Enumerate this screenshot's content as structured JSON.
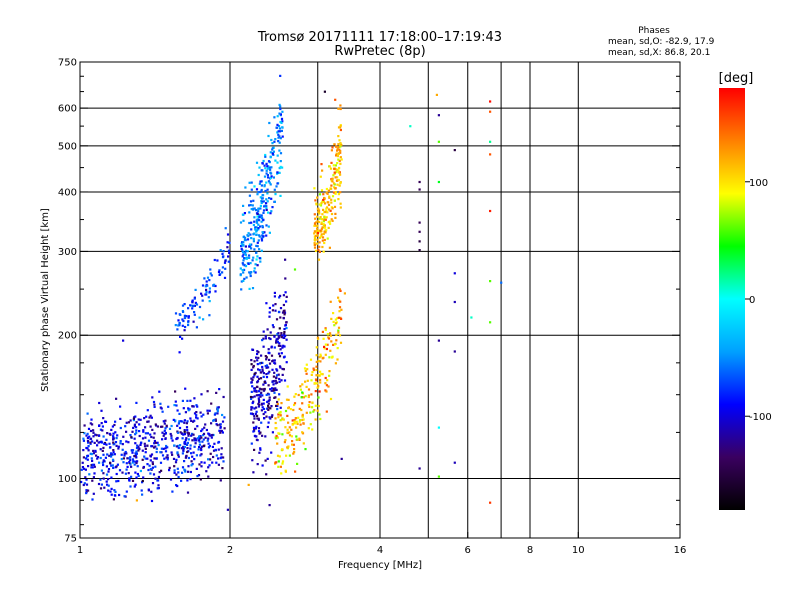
{
  "header": {
    "title_line1": "Tromsø 20171111 17:18:00–17:19:43",
    "title_line2": "RwPretec (8p)"
  },
  "stats": {
    "heading": "Phases",
    "line_o": "mean, sd,O: -82.9, 17.9",
    "line_x": "mean, sd,X:  86.8, 20.1"
  },
  "colorbar": {
    "unit_label": "[deg]",
    "range": [
      -180,
      180
    ],
    "ticks": [
      {
        "value": 100,
        "label": "100"
      },
      {
        "value": 0,
        "label": "0"
      },
      {
        "value": -100,
        "label": "-100"
      }
    ],
    "stops": [
      "#000000",
      "#3a0060",
      "#0000ff",
      "#00a0ff",
      "#00ffff",
      "#00ff00",
      "#ffff00",
      "#ff8000",
      "#ff0000"
    ]
  },
  "chart_data": {
    "type": "scatter",
    "title": "Tromsø 20171111 17:18:00–17:19:43",
    "subtitle": "RwPretec (8p)",
    "xlabel": "Frequency [MHz]",
    "ylabel": "Stationary phase Virtual Height [km]",
    "x_scale": "log",
    "y_scale": "log",
    "xlim": [
      1,
      16
    ],
    "ylim": [
      75,
      750
    ],
    "grid": true,
    "x_ticks": [
      {
        "value": 1,
        "label": "1"
      },
      {
        "value": 2,
        "label": "2"
      },
      {
        "value": 4,
        "label": "4"
      },
      {
        "value": 6,
        "label": "6"
      },
      {
        "value": 8,
        "label": "8"
      },
      {
        "value": 10,
        "label": "10"
      },
      {
        "value": 16,
        "label": "16"
      }
    ],
    "x_grid": [
      2,
      3,
      4,
      5,
      6,
      7,
      8,
      10
    ],
    "y_ticks": [
      {
        "value": 75,
        "label": "75"
      },
      {
        "value": 100,
        "label": "100"
      },
      {
        "value": 200,
        "label": "200"
      },
      {
        "value": 300,
        "label": "300"
      },
      {
        "value": 400,
        "label": "400"
      },
      {
        "value": 500,
        "label": "500"
      },
      {
        "value": 600,
        "label": "600"
      },
      {
        "value": 750,
        "label": "750"
      }
    ],
    "y_grid": [
      100,
      200,
      300,
      400,
      500,
      600
    ],
    "y_minor": [
      80,
      90,
      125,
      150,
      175,
      250,
      350,
      450,
      550,
      650,
      700
    ],
    "color_scale": "phase [deg], -180 to 180",
    "point_groups": [
      {
        "x_range": [
          1.0,
          1.95
        ],
        "height_start": 112,
        "height_end": 125,
        "count": 700,
        "spread": 0.1,
        "phase": -95,
        "phase_spread": 22
      },
      {
        "x_range": [
          1.55,
          2.0
        ],
        "height_start": 210,
        "height_end": 310,
        "count": 110,
        "spread": 0.05,
        "phase": -70,
        "phase_spread": 20
      },
      {
        "x_range": [
          2.1,
          2.55
        ],
        "height_start": 300,
        "height_end": 560,
        "count": 320,
        "spread": 0.12,
        "phase": -55,
        "phase_spread": 20
      },
      {
        "x_range": [
          2.95,
          3.35
        ],
        "height_start": 340,
        "height_end": 480,
        "count": 230,
        "spread": 0.1,
        "phase": 115,
        "phase_spread": 20
      },
      {
        "x_range": [
          2.2,
          2.6
        ],
        "height_start": 140,
        "height_end": 215,
        "count": 320,
        "spread": 0.15,
        "phase": -110,
        "phase_spread": 20
      },
      {
        "x_range": [
          2.45,
          3.35
        ],
        "height_start": 120,
        "height_end": 220,
        "count": 260,
        "spread": 0.1,
        "phase": 110,
        "phase_spread": 25
      }
    ],
    "points": [
      {
        "x": 1.3,
        "y": 90,
        "phase": 120
      },
      {
        "x": 1.22,
        "y": 195,
        "phase": -100
      },
      {
        "x": 2.18,
        "y": 97,
        "phase": 120
      },
      {
        "x": 1.98,
        "y": 86,
        "phase": -110
      },
      {
        "x": 2.38,
        "y": 110,
        "phase": -100
      },
      {
        "x": 2.4,
        "y": 88,
        "phase": -120
      },
      {
        "x": 2.7,
        "y": 275,
        "phase": 60
      },
      {
        "x": 3.1,
        "y": 650,
        "phase": -160
      },
      {
        "x": 3.25,
        "y": 625,
        "phase": 150
      },
      {
        "x": 3.4,
        "y": 245,
        "phase": 120
      },
      {
        "x": 3.35,
        "y": 110,
        "phase": -120
      },
      {
        "x": 4.6,
        "y": 550,
        "phase": 10
      },
      {
        "x": 4.8,
        "y": 420,
        "phase": -140
      },
      {
        "x": 4.8,
        "y": 405,
        "phase": -140
      },
      {
        "x": 4.8,
        "y": 345,
        "phase": -140
      },
      {
        "x": 4.8,
        "y": 330,
        "phase": -140
      },
      {
        "x": 4.8,
        "y": 315,
        "phase": -150
      },
      {
        "x": 4.8,
        "y": 302,
        "phase": -150
      },
      {
        "x": 4.8,
        "y": 105,
        "phase": -120
      },
      {
        "x": 5.2,
        "y": 640,
        "phase": 120
      },
      {
        "x": 5.25,
        "y": 580,
        "phase": -120
      },
      {
        "x": 5.25,
        "y": 510,
        "phase": 60
      },
      {
        "x": 5.25,
        "y": 420,
        "phase": 40
      },
      {
        "x": 5.25,
        "y": 195,
        "phase": -120
      },
      {
        "x": 5.25,
        "y": 128,
        "phase": 0
      },
      {
        "x": 5.25,
        "y": 101,
        "phase": 60
      },
      {
        "x": 5.65,
        "y": 490,
        "phase": -150
      },
      {
        "x": 5.65,
        "y": 270,
        "phase": -100
      },
      {
        "x": 5.65,
        "y": 235,
        "phase": -110
      },
      {
        "x": 5.65,
        "y": 185,
        "phase": -120
      },
      {
        "x": 5.65,
        "y": 108,
        "phase": -110
      },
      {
        "x": 6.1,
        "y": 218,
        "phase": 10
      },
      {
        "x": 6.65,
        "y": 620,
        "phase": 175
      },
      {
        "x": 6.65,
        "y": 590,
        "phase": 150
      },
      {
        "x": 6.65,
        "y": 510,
        "phase": 20
      },
      {
        "x": 6.65,
        "y": 480,
        "phase": 150
      },
      {
        "x": 6.65,
        "y": 365,
        "phase": 170
      },
      {
        "x": 6.65,
        "y": 260,
        "phase": 60
      },
      {
        "x": 6.65,
        "y": 213,
        "phase": 60
      },
      {
        "x": 6.65,
        "y": 89,
        "phase": 160
      },
      {
        "x": 7.0,
        "y": 258,
        "phase": -60
      }
    ]
  }
}
